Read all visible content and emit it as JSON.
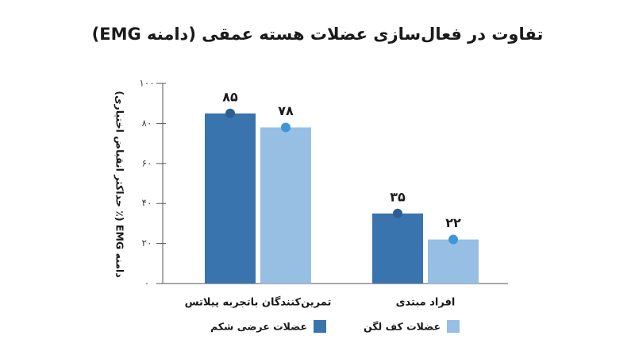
{
  "chart_data": {
    "type": "bar",
    "title": "تفاوت در فعال‌سازی عضلات هسته عمقی (دامنه EMG)",
    "y_label": "دامنه EMG (٪ حداکثر انقباض اختیاری)",
    "categories": [
      "تمرین‌کنندگان باتجربه پیلاتس",
      "افراد مبتدی"
    ],
    "series": [
      {
        "name": "عضلات عرضی شکم",
        "color": "#3a74ae",
        "dot_color": "#2e5f92",
        "values": [
          85,
          35
        ],
        "value_labels": [
          "۸۵",
          "۳۵"
        ]
      },
      {
        "name": "عضلات کف لگن",
        "color": "#97bfe4",
        "dot_color": "#3f95d6",
        "values": [
          78,
          22
        ],
        "value_labels": [
          "۷۸",
          "۲۲"
        ]
      }
    ],
    "ylim": [
      0,
      100
    ],
    "yticks": [
      {
        "value": 0,
        "label": "۰"
      },
      {
        "value": 20,
        "label": "۲۰"
      },
      {
        "value": 40,
        "label": "۴۰"
      },
      {
        "value": 60,
        "label": "۶۰"
      },
      {
        "value": 80,
        "label": "۸۰"
      },
      {
        "value": 100,
        "label": "۱۰۰"
      }
    ],
    "grid": false,
    "legend": "bottom"
  }
}
